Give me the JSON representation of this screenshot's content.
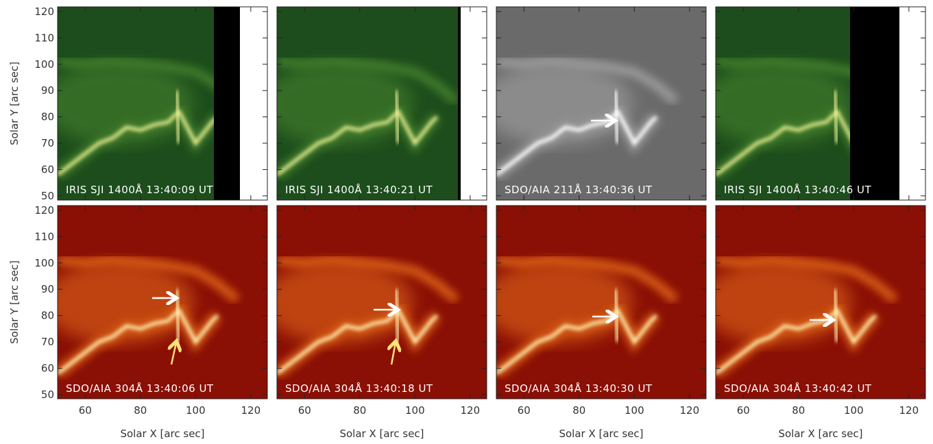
{
  "chart_data": {
    "type": "image-grid",
    "x_label": "Solar X [arc sec]",
    "y_label": "Solar Y [arc sec]",
    "xlim": [
      50,
      126
    ],
    "ylim": [
      48.4,
      121.8
    ],
    "xticks": [
      60,
      80,
      100,
      120
    ],
    "yticks": [
      50,
      60,
      70,
      80,
      90,
      100,
      110,
      120
    ],
    "panels": [
      {
        "label": "IRIS SJI 1400Å 13:40:09 UT"
      },
      {
        "label": "IRIS SJI 1400Å 13:40:21 UT"
      },
      {
        "label": "SDO/AIA 211Å 13:40:36 UT"
      },
      {
        "label": "IRIS SJI 1400Å 13:40:46 UT"
      },
      {
        "label": "SDO/AIA 304Å 13:40:06 UT"
      },
      {
        "label": "SDO/AIA 304Å 13:40:18 UT"
      },
      {
        "label": "SDO/AIA 304Å 13:40:30 UT"
      },
      {
        "label": "SDO/AIA 304Å 13:40:42 UT"
      }
    ]
  }
}
